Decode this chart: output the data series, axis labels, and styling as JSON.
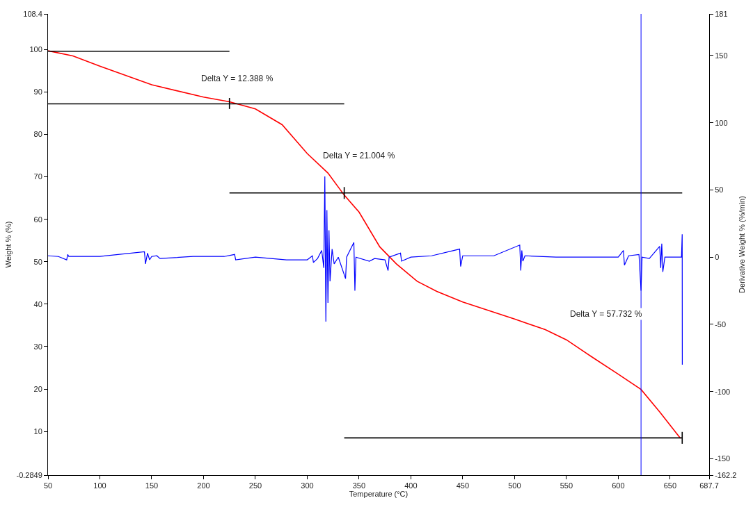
{
  "chart_data": {
    "type": "line",
    "xlabel": "Temperature (°C)",
    "ylabel": "Weight % (%)",
    "y2label": "Derivative Weight % (%/min)",
    "xlim": [
      50,
      687.7
    ],
    "xticks": [
      50,
      100,
      150,
      200,
      250,
      300,
      350,
      400,
      450,
      500,
      550,
      600,
      650,
      687.7
    ],
    "ylim": [
      -0.2849,
      108.4
    ],
    "yticks": [
      -0.2849,
      10,
      20,
      30,
      40,
      50,
      60,
      70,
      80,
      90,
      100,
      108.4
    ],
    "y2lim": [
      -162.2,
      181
    ],
    "y2ticks": [
      -162.2,
      -150,
      -100,
      -50,
      0,
      50,
      100,
      150,
      181
    ],
    "line_style": "solid",
    "marker": "none",
    "series": [
      {
        "color": "#ff0000",
        "x": [
          50,
          74,
          100,
          150,
          200,
          225,
          250,
          275.8,
          300,
          320,
          335.7,
          350,
          370,
          386,
          406,
          425,
          450,
          500,
          529.6,
          550,
          575,
          600,
          622,
          640,
          660
        ],
        "values": [
          99.7,
          98.5,
          96.1,
          91.7,
          88.8,
          87.7,
          86.0,
          82.3,
          75.5,
          70.9,
          65.7,
          61.7,
          53.5,
          49.5,
          45.4,
          43,
          40.5,
          36.5,
          34,
          31.6,
          27.5,
          23.5,
          19.9,
          14.6,
          8.4
        ]
      },
      {
        "color": "#0000ff",
        "axis": "y2",
        "x": [
          50,
          60,
          68,
          69,
          70,
          100,
          143,
          144,
          146,
          148,
          150,
          155,
          158,
          190,
          220,
          230,
          231,
          250,
          280,
          300,
          305,
          306,
          310,
          314,
          316,
          317,
          318,
          319,
          320,
          321,
          322,
          324,
          326,
          330,
          337,
          338,
          345,
          346,
          347,
          360,
          365,
          375,
          378,
          379,
          390,
          391,
          400,
          420,
          447,
          448,
          450,
          480,
          505,
          506,
          507,
          508,
          510,
          540,
          570,
          600,
          605,
          606,
          610,
          620,
          622,
          623,
          630,
          640,
          641,
          642,
          643,
          645,
          655,
          661,
          661.7,
          661.8
        ],
        "values": [
          1,
          0.5,
          -2,
          2,
          0.5,
          0.5,
          4,
          -5,
          3,
          -2,
          0.5,
          1,
          -1,
          0.5,
          0.5,
          2,
          -2,
          0,
          -2,
          -2,
          1,
          -4,
          -1,
          5,
          -8,
          60,
          -48,
          35,
          -34,
          20,
          -18,
          6,
          -5,
          0,
          -16,
          0,
          11,
          -25,
          0,
          -3,
          -1,
          -2,
          -10,
          0,
          3,
          -3,
          0,
          1,
          6,
          -7,
          1,
          1,
          9,
          -10,
          5,
          -3,
          1,
          0,
          0,
          0,
          5,
          -6,
          1,
          2,
          -25,
          0,
          -1,
          8,
          -8,
          10,
          -11,
          0,
          0,
          0,
          17,
          -80
        ]
      },
      {
        "color": "#000000",
        "x": [
          50,
          225
        ],
        "values": [
          99.6,
          99.6
        ]
      },
      {
        "color": "#000000",
        "x": [
          50,
          335.7
        ],
        "values": [
          87.2,
          87.2
        ]
      },
      {
        "color": "#000000",
        "x": [
          225,
          661.7
        ],
        "values": [
          66.2,
          66.2
        ]
      },
      {
        "color": "#000000",
        "x": [
          335.7,
          661.7
        ],
        "values": [
          8.5,
          8.5
        ]
      },
      {
        "color": "#000000",
        "x": [
          225,
          225
        ],
        "values": [
          86.0,
          88.6
        ]
      },
      {
        "color": "#000000",
        "x": [
          335.7,
          335.7
        ],
        "values": [
          64.8,
          67.6
        ]
      },
      {
        "color": "#000000",
        "x": [
          661.7,
          661.7
        ],
        "values": [
          7.1,
          9.9
        ]
      }
    ],
    "ref_lines": [
      {
        "axis": "x",
        "value": 622,
        "color": "#0000ff"
      }
    ],
    "annotations": [
      "Delta Y = 12.388 %",
      "Delta Y = 21.004 %",
      "Delta Y = 57.732 %"
    ]
  }
}
